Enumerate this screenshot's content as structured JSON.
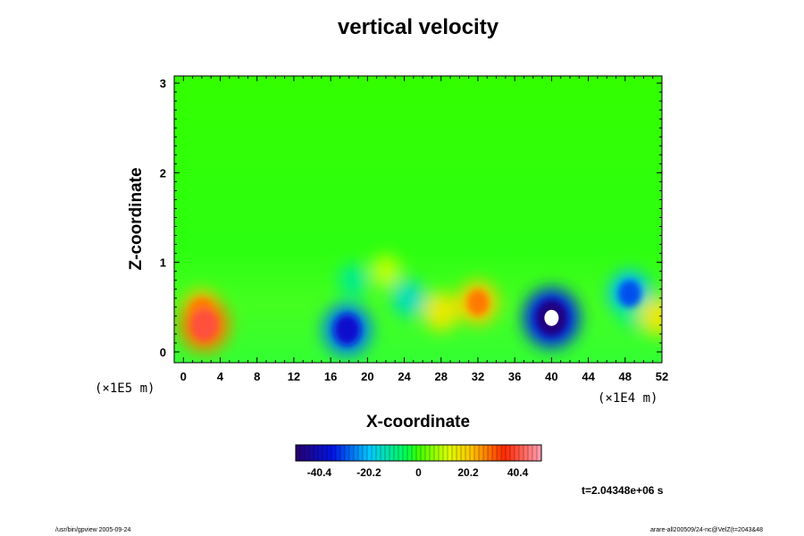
{
  "chart_data": {
    "type": "heatmap",
    "title": "vertical velocity",
    "xlabel": "X-coordinate",
    "ylabel": "Z-coordinate",
    "x_scale_note": "(×1E4 m)",
    "y_scale_note": "(×1E5 m)",
    "x_ticks": [
      "0",
      "4",
      "8",
      "12",
      "16",
      "20",
      "24",
      "28",
      "32",
      "36",
      "40",
      "44",
      "48",
      "52"
    ],
    "y_ticks": [
      "0",
      "1",
      "2",
      "3"
    ],
    "xlim": [
      -1,
      52
    ],
    "ylim": [
      -0.12,
      3.08
    ],
    "colorbar": {
      "range": [
        -50,
        50
      ],
      "tick_labels": [
        "-40.4",
        "-20.2",
        "0",
        "20.2",
        "40.4"
      ],
      "tick_values": [
        -40.4,
        -20.2,
        0,
        20.2,
        40.4
      ]
    },
    "features": [
      {
        "x": 2.0,
        "z": 0.45,
        "value": 28
      },
      {
        "x": 2.3,
        "z": 0.3,
        "value": 40
      },
      {
        "x": 17.8,
        "z": 0.25,
        "value": -38
      },
      {
        "x": 18.5,
        "z": 0.8,
        "value": -15
      },
      {
        "x": 24.5,
        "z": 0.6,
        "value": -20
      },
      {
        "x": 28.0,
        "z": 0.45,
        "value": 22
      },
      {
        "x": 32.0,
        "z": 0.55,
        "value": 28
      },
      {
        "x": 40.0,
        "z": 0.38,
        "value": -48
      },
      {
        "x": 48.5,
        "z": 0.65,
        "value": -30
      },
      {
        "x": 49.0,
        "z": 0.45,
        "value": -15
      },
      {
        "x": 51.5,
        "z": 0.4,
        "value": 22
      },
      {
        "x": 22.0,
        "z": 0.9,
        "value": 14
      }
    ]
  },
  "time_label": "t=2.04348e+06 s",
  "footer_left": "/usr/bin/gpview 2005-09-24",
  "footer_right": "arare-all200509/24-nc@VelZ(t=2043&48"
}
